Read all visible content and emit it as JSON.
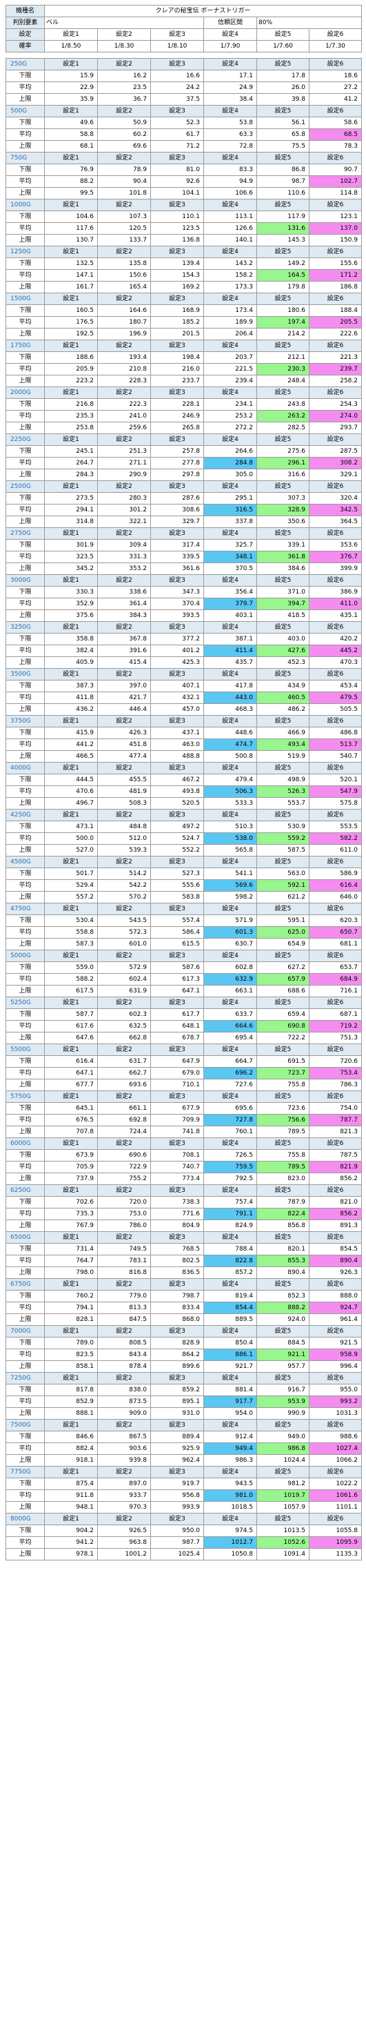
{
  "header": {
    "machine_label": "機種名",
    "machine_name": "クレアの秘宝伝 ボーナストリガー",
    "factor_label": "判別要素",
    "factor_value": "ベル",
    "confidence_label": "信頼区間",
    "confidence_value": "80%",
    "setting_label": "設定",
    "settings": [
      "設定1",
      "設定2",
      "設定3",
      "設定4",
      "設定5",
      "設定6"
    ],
    "prob_label": "確率",
    "probabilities": [
      "1/8.50",
      "1/8.30",
      "1/8.10",
      "1/7.90",
      "1/7.60",
      "1/7.30"
    ]
  },
  "row_labels": {
    "lower": "下限",
    "average": "平均",
    "upper": "上限"
  },
  "colors": {
    "green": "#99f58e",
    "pink": "#f58cf0",
    "blue": "#5ac7f2",
    "header_blue": "#dfeaf2",
    "section_text": "#2a6fb0"
  },
  "sections": [
    {
      "g": "250G",
      "lower": [
        "15.9",
        "16.2",
        "16.6",
        "17.1",
        "17.8",
        "18.6"
      ],
      "average": [
        "22.9",
        "23.5",
        "24.2",
        "24.9",
        "26.0",
        "27.2"
      ],
      "upper": [
        "35.9",
        "36.7",
        "37.5",
        "38.4",
        "39.8",
        "41.2"
      ]
    },
    {
      "g": "500G",
      "lower": [
        "49.6",
        "50.9",
        "52.3",
        "53.8",
        "56.1",
        "58.6"
      ],
      "average": [
        "58.8",
        "60.2",
        "61.7",
        "63.3",
        "65.8",
        "68.5"
      ],
      "upper": [
        "68.1",
        "69.6",
        "71.2",
        "72.8",
        "75.5",
        "78.3"
      ]
    },
    {
      "g": "750G",
      "lower": [
        "76.9",
        "78.9",
        "81.0",
        "83.3",
        "86.8",
        "90.7"
      ],
      "average": [
        "88.2",
        "90.4",
        "92.6",
        "94.9",
        "98.7",
        "102.7"
      ],
      "upper": [
        "99.5",
        "101.8",
        "104.1",
        "106.6",
        "110.6",
        "114.8"
      ]
    },
    {
      "g": "1000G",
      "lower": [
        "104.6",
        "107.3",
        "110.1",
        "113.1",
        "117.9",
        "123.1"
      ],
      "average": [
        "117.6",
        "120.5",
        "123.5",
        "126.6",
        "131.6",
        "137.0"
      ],
      "upper": [
        "130.7",
        "133.7",
        "136.8",
        "140.1",
        "145.3",
        "150.9"
      ]
    },
    {
      "g": "1250G",
      "lower": [
        "132.5",
        "135.8",
        "139.4",
        "143.2",
        "149.2",
        "155.6"
      ],
      "average": [
        "147.1",
        "150.6",
        "154.3",
        "158.2",
        "164.5",
        "171.2"
      ],
      "upper": [
        "161.7",
        "165.4",
        "169.2",
        "173.3",
        "179.8",
        "186.8"
      ]
    },
    {
      "g": "1500G",
      "lower": [
        "160.5",
        "164.6",
        "168.9",
        "173.4",
        "180.6",
        "188.4"
      ],
      "average": [
        "176.5",
        "180.7",
        "185.2",
        "189.9",
        "197.4",
        "205.5"
      ],
      "upper": [
        "192.5",
        "196.9",
        "201.5",
        "206.4",
        "214.2",
        "222.6"
      ]
    },
    {
      "g": "1750G",
      "lower": [
        "188.6",
        "193.4",
        "198.4",
        "203.7",
        "212.1",
        "221.3"
      ],
      "average": [
        "205.9",
        "210.8",
        "216.0",
        "221.5",
        "230.3",
        "239.7"
      ],
      "upper": [
        "223.2",
        "228.3",
        "233.7",
        "239.4",
        "248.4",
        "258.2"
      ]
    },
    {
      "g": "2000G",
      "lower": [
        "216.8",
        "222.3",
        "228.1",
        "234.1",
        "243.8",
        "254.3"
      ],
      "average": [
        "235.3",
        "241.0",
        "246.9",
        "253.2",
        "263.2",
        "274.0"
      ],
      "upper": [
        "253.8",
        "259.6",
        "265.8",
        "272.2",
        "282.5",
        "293.7"
      ]
    },
    {
      "g": "2250G",
      "lower": [
        "245.1",
        "251.3",
        "257.8",
        "264.6",
        "275.6",
        "287.5"
      ],
      "average": [
        "264.7",
        "271.1",
        "277.8",
        "284.8",
        "296.1",
        "308.2"
      ],
      "upper": [
        "284.3",
        "290.9",
        "297.8",
        "305.0",
        "316.6",
        "329.1"
      ]
    },
    {
      "g": "2500G",
      "lower": [
        "273.5",
        "280.3",
        "287.6",
        "295.1",
        "307.3",
        "320.4"
      ],
      "average": [
        "294.1",
        "301.2",
        "308.6",
        "316.5",
        "328.9",
        "342.5"
      ],
      "upper": [
        "314.8",
        "322.1",
        "329.7",
        "337.8",
        "350.6",
        "364.5"
      ]
    },
    {
      "g": "2750G",
      "lower": [
        "301.9",
        "309.4",
        "317.4",
        "325.7",
        "339.1",
        "353.6"
      ],
      "average": [
        "323.5",
        "331.3",
        "339.5",
        "348.1",
        "361.8",
        "376.7"
      ],
      "upper": [
        "345.2",
        "353.2",
        "361.6",
        "370.5",
        "384.6",
        "399.9"
      ]
    },
    {
      "g": "3000G",
      "lower": [
        "330.3",
        "338.6",
        "347.3",
        "356.4",
        "371.0",
        "386.9"
      ],
      "average": [
        "352.9",
        "361.4",
        "370.4",
        "379.7",
        "394.7",
        "411.0"
      ],
      "upper": [
        "375.6",
        "384.3",
        "393.5",
        "403.1",
        "418.5",
        "435.1"
      ]
    },
    {
      "g": "3250G",
      "lower": [
        "358.8",
        "367.8",
        "377.2",
        "387.1",
        "403.0",
        "420.2"
      ],
      "average": [
        "382.4",
        "391.6",
        "401.2",
        "411.4",
        "427.6",
        "445.2"
      ],
      "upper": [
        "405.9",
        "415.4",
        "425.3",
        "435.7",
        "452.3",
        "470.3"
      ]
    },
    {
      "g": "3500G",
      "lower": [
        "387.3",
        "397.0",
        "407.1",
        "417.8",
        "434.9",
        "453.4"
      ],
      "average": [
        "411.8",
        "421.7",
        "432.1",
        "443.0",
        "460.5",
        "479.5"
      ],
      "upper": [
        "436.2",
        "446.4",
        "457.0",
        "468.3",
        "486.2",
        "505.5"
      ]
    },
    {
      "g": "3750G",
      "lower": [
        "415.9",
        "426.3",
        "437.1",
        "448.6",
        "466.9",
        "486.8"
      ],
      "average": [
        "441.2",
        "451.8",
        "463.0",
        "474.7",
        "493.4",
        "513.7"
      ],
      "upper": [
        "466.5",
        "477.4",
        "488.8",
        "500.8",
        "519.9",
        "540.7"
      ]
    },
    {
      "g": "4000G",
      "lower": [
        "444.5",
        "455.5",
        "467.2",
        "479.4",
        "498.9",
        "520.1"
      ],
      "average": [
        "470.6",
        "481.9",
        "493.8",
        "506.3",
        "526.3",
        "547.9"
      ],
      "upper": [
        "496.7",
        "508.3",
        "520.5",
        "533.3",
        "553.7",
        "575.8"
      ]
    },
    {
      "g": "4250G",
      "lower": [
        "473.1",
        "484.8",
        "497.2",
        "510.3",
        "530.9",
        "553.5"
      ],
      "average": [
        "500.0",
        "512.0",
        "524.7",
        "538.0",
        "559.2",
        "582.2"
      ],
      "upper": [
        "527.0",
        "539.3",
        "552.2",
        "565.8",
        "587.5",
        "611.0"
      ]
    },
    {
      "g": "4500G",
      "lower": [
        "501.7",
        "514.2",
        "527.3",
        "541.1",
        "563.0",
        "586.9"
      ],
      "average": [
        "529.4",
        "542.2",
        "555.6",
        "569.6",
        "592.1",
        "616.4"
      ],
      "upper": [
        "557.2",
        "570.2",
        "583.8",
        "598.2",
        "621.2",
        "646.0"
      ]
    },
    {
      "g": "4750G",
      "lower": [
        "530.4",
        "543.5",
        "557.4",
        "571.9",
        "595.1",
        "620.3"
      ],
      "average": [
        "558.8",
        "572.3",
        "586.4",
        "601.3",
        "625.0",
        "650.7"
      ],
      "upper": [
        "587.3",
        "601.0",
        "615.5",
        "630.7",
        "654.9",
        "681.1"
      ]
    },
    {
      "g": "5000G",
      "lower": [
        "559.0",
        "572.9",
        "587.6",
        "602.8",
        "627.2",
        "653.7"
      ],
      "average": [
        "588.2",
        "602.4",
        "617.3",
        "632.9",
        "657.9",
        "684.9"
      ],
      "upper": [
        "617.5",
        "631.9",
        "647.1",
        "663.1",
        "688.6",
        "716.1"
      ]
    },
    {
      "g": "5250G",
      "lower": [
        "587.7",
        "602.3",
        "617.7",
        "633.7",
        "659.4",
        "687.1"
      ],
      "average": [
        "617.6",
        "632.5",
        "648.1",
        "664.6",
        "690.8",
        "719.2"
      ],
      "upper": [
        "647.6",
        "662.8",
        "678.7",
        "695.4",
        "722.2",
        "751.3"
      ]
    },
    {
      "g": "5500G",
      "lower": [
        "616.4",
        "631.7",
        "647.9",
        "664.7",
        "691.5",
        "720.6"
      ],
      "average": [
        "647.1",
        "662.7",
        "679.0",
        "696.2",
        "723.7",
        "753.4"
      ],
      "upper": [
        "677.7",
        "693.6",
        "710.1",
        "727.6",
        "755.8",
        "786.3"
      ]
    },
    {
      "g": "5750G",
      "lower": [
        "645.1",
        "661.1",
        "677.9",
        "695.6",
        "723.6",
        "754.0"
      ],
      "average": [
        "676.5",
        "692.8",
        "709.9",
        "727.8",
        "756.6",
        "787.7"
      ],
      "upper": [
        "707.8",
        "724.4",
        "741.8",
        "760.1",
        "789.5",
        "821.3"
      ]
    },
    {
      "g": "6000G",
      "lower": [
        "673.9",
        "690.6",
        "708.1",
        "726.5",
        "755.8",
        "787.5"
      ],
      "average": [
        "705.9",
        "722.9",
        "740.7",
        "759.5",
        "789.5",
        "821.9"
      ],
      "upper": [
        "737.9",
        "755.2",
        "773.4",
        "792.5",
        "823.0",
        "856.2"
      ]
    },
    {
      "g": "6250G",
      "lower": [
        "702.6",
        "720.0",
        "738.3",
        "757.4",
        "787.9",
        "821.0"
      ],
      "average": [
        "735.3",
        "753.0",
        "771.6",
        "791.1",
        "822.4",
        "856.2"
      ],
      "upper": [
        "767.9",
        "786.0",
        "804.9",
        "824.9",
        "856.8",
        "891.3"
      ]
    },
    {
      "g": "6500G",
      "lower": [
        "731.4",
        "749.5",
        "768.5",
        "788.4",
        "820.1",
        "854.5"
      ],
      "average": [
        "764.7",
        "783.1",
        "802.5",
        "822.8",
        "855.3",
        "890.4"
      ],
      "upper": [
        "798.0",
        "816.8",
        "836.5",
        "857.2",
        "890.4",
        "926.3"
      ]
    },
    {
      "g": "6750G",
      "lower": [
        "760.2",
        "779.0",
        "798.7",
        "819.4",
        "852.3",
        "888.0"
      ],
      "average": [
        "794.1",
        "813.3",
        "833.4",
        "854.4",
        "888.2",
        "924.7"
      ],
      "upper": [
        "828.1",
        "847.5",
        "868.0",
        "889.5",
        "924.0",
        "961.4"
      ]
    },
    {
      "g": "7000G",
      "lower": [
        "789.0",
        "808.5",
        "828.9",
        "850.4",
        "884.5",
        "921.5"
      ],
      "average": [
        "823.5",
        "843.4",
        "864.2",
        "886.1",
        "921.1",
        "958.9"
      ],
      "upper": [
        "858.1",
        "878.4",
        "899.6",
        "921.7",
        "957.7",
        "996.4"
      ]
    },
    {
      "g": "7250G",
      "lower": [
        "817.8",
        "838.0",
        "859.2",
        "881.4",
        "916.7",
        "955.0"
      ],
      "average": [
        "852.9",
        "873.5",
        "895.1",
        "917.7",
        "953.9",
        "993.2"
      ],
      "upper": [
        "888.1",
        "909.0",
        "931.0",
        "954.0",
        "990.9",
        "1031.3"
      ]
    },
    {
      "g": "7500G",
      "lower": [
        "846.6",
        "867.5",
        "889.4",
        "912.4",
        "949.0",
        "988.6"
      ],
      "average": [
        "882.4",
        "903.6",
        "925.9",
        "949.4",
        "986.8",
        "1027.4"
      ],
      "upper": [
        "918.1",
        "939.8",
        "962.4",
        "986.3",
        "1024.4",
        "1066.2"
      ]
    },
    {
      "g": "7750G",
      "lower": [
        "875.4",
        "897.0",
        "919.7",
        "943.5",
        "981.2",
        "1022.2"
      ],
      "average": [
        "911.8",
        "933.7",
        "956.8",
        "981.0",
        "1019.7",
        "1061.6"
      ],
      "upper": [
        "948.1",
        "970.3",
        "993.9",
        "1018.5",
        "1057.9",
        "1101.1"
      ]
    },
    {
      "g": "8000G",
      "lower": [
        "904.2",
        "926.5",
        "950.0",
        "974.5",
        "1013.5",
        "1055.8"
      ],
      "average": [
        "941.2",
        "963.8",
        "987.7",
        "1012.7",
        "1052.6",
        "1095.9"
      ],
      "upper": [
        "978.1",
        "1001.2",
        "1025.4",
        "1050.8",
        "1091.4",
        "1135.3"
      ]
    }
  ]
}
